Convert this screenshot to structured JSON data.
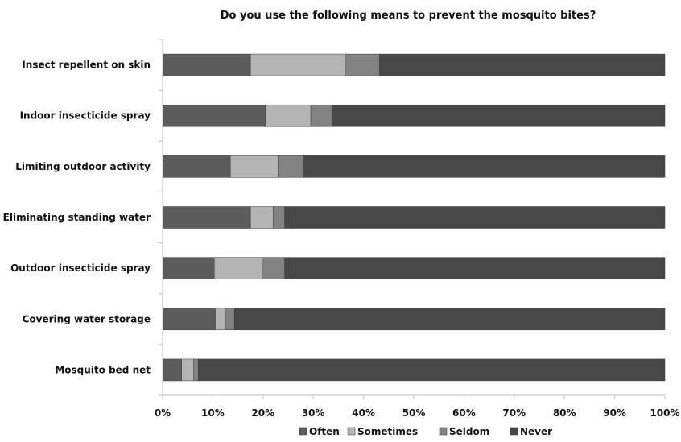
{
  "chart_data": {
    "type": "bar",
    "orientation": "horizontal",
    "stacked": "percent",
    "title": "Do you use the following means to prevent the mosquito bites?",
    "xlabel": "",
    "ylabel": "",
    "xlim": [
      0,
      100
    ],
    "x_ticks": [
      "0%",
      "10%",
      "20%",
      "30%",
      "40%",
      "50%",
      "60%",
      "70%",
      "80%",
      "90%",
      "100%"
    ],
    "categories": [
      "Insect repellent on skin",
      "Indoor insecticide spray",
      "Limiting outdoor activity",
      "Eliminating standing water",
      "Outdoor insecticide spray",
      "Covering water storage",
      "Mosquito bed net"
    ],
    "series": [
      {
        "name": "Often",
        "color": "#5c5c5c",
        "values": [
          17.5,
          20.5,
          13.5,
          17.5,
          10.3,
          10.5,
          3.8
        ]
      },
      {
        "name": "Sometimes",
        "color": "#b4b4b4",
        "values": [
          19.0,
          9.0,
          9.5,
          4.5,
          9.5,
          2.0,
          2.4
        ]
      },
      {
        "name": "Seldom",
        "color": "#828282",
        "values": [
          6.7,
          4.2,
          5.0,
          2.3,
          4.5,
          1.8,
          0.9
        ]
      },
      {
        "name": "Never",
        "color": "#484848",
        "values": [
          56.8,
          66.3,
          72.0,
          75.7,
          75.7,
          85.7,
          92.9
        ]
      }
    ],
    "grid": false,
    "legend_position": "bottom"
  }
}
